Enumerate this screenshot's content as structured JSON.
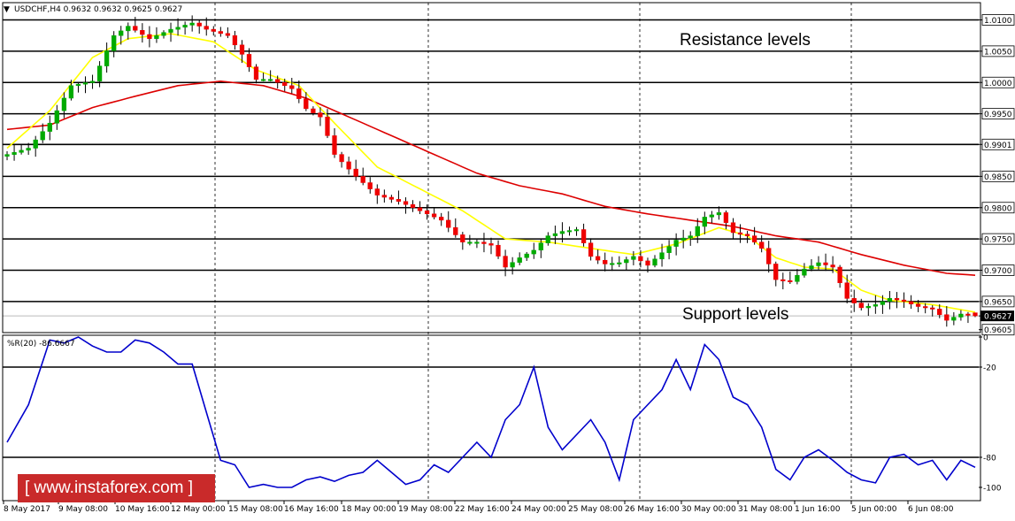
{
  "header": {
    "symbol_line": "USDCHF,H4  0.9632 0.9632 0.9625 0.9627",
    "indicator_line": "%R(20) -86.6667",
    "dropdown_glyph": "▼"
  },
  "annotations": {
    "resistance": "Resistance levels",
    "support": "Support levels"
  },
  "watermark": "[  www.instaforex.com ]",
  "colors": {
    "bull": "#00aa00",
    "bear": "#ee0000",
    "fast_ma": "#ffff00",
    "slow_ma": "#dd0000",
    "wpr": "#0000cc",
    "current_price_bg": "#000000",
    "logo_bg": "#c92a2a"
  },
  "chart_data": [
    {
      "type": "candlestick",
      "symbol": "USDCHF",
      "timeframe": "H4",
      "ohlc_current": {
        "open": 0.9632,
        "high": 0.9632,
        "low": 0.9625,
        "close": 0.9627
      },
      "ylim": [
        0.96,
        1.0125
      ],
      "price_ticks": [
        "1.0100",
        "1.0050",
        "1.0000",
        "0.9950",
        "0.9901",
        "0.9850",
        "0.9800",
        "0.9750",
        "0.9700",
        "0.9650",
        "0.9627",
        "0.9605"
      ],
      "level_lines": [
        1.01,
        1.005,
        1.0,
        0.995,
        0.9901,
        0.985,
        0.98,
        0.975,
        0.97,
        0.965
      ],
      "current_price": 0.9627,
      "x_tick_labels": [
        "8 May 2017",
        "9 May 08:00",
        "10 May 16:00",
        "12 May 00:00",
        "15 May 08:00",
        "16 May 16:00",
        "18 May 00:00",
        "19 May 08:00",
        "22 May 16:00",
        "24 May 00:00",
        "25 May 08:00",
        "26 May 16:00",
        "30 May 00:00",
        "31 May 08:00",
        "1 Jun 16:00",
        "5 Jun 00:00",
        "6 Jun 08:00"
      ],
      "close_path": [
        [
          0,
          0.9885
        ],
        [
          3,
          0.9895
        ],
        [
          6,
          0.9935
        ],
        [
          9,
          0.9995
        ],
        [
          12,
          1.0002
        ],
        [
          15,
          1.0075
        ],
        [
          17,
          1.009
        ],
        [
          20,
          1.007
        ],
        [
          23,
          1.0085
        ],
        [
          26,
          1.0095
        ],
        [
          28,
          1.0085
        ],
        [
          31,
          1.0075
        ],
        [
          33,
          1.0045
        ],
        [
          35,
          1.0005
        ],
        [
          37,
          1.0005
        ],
        [
          40,
          0.999
        ],
        [
          42,
          0.9958
        ],
        [
          44,
          0.9945
        ],
        [
          46,
          0.9885
        ],
        [
          49,
          0.985
        ],
        [
          52,
          0.982
        ],
        [
          55,
          0.981
        ],
        [
          58,
          0.9795
        ],
        [
          61,
          0.978
        ],
        [
          64,
          0.9745
        ],
        [
          66,
          0.9745
        ],
        [
          68,
          0.974
        ],
        [
          70,
          0.9705
        ],
        [
          72,
          0.972
        ],
        [
          74,
          0.9732
        ],
        [
          76,
          0.9755
        ],
        [
          78,
          0.9762
        ],
        [
          80,
          0.9765
        ],
        [
          82,
          0.9722
        ],
        [
          84,
          0.971
        ],
        [
          86,
          0.9712
        ],
        [
          88,
          0.9722
        ],
        [
          90,
          0.9708
        ],
        [
          92,
          0.9728
        ],
        [
          94,
          0.9748
        ],
        [
          96,
          0.9755
        ],
        [
          98,
          0.9785
        ],
        [
          100,
          0.9792
        ],
        [
          102,
          0.976
        ],
        [
          104,
          0.9755
        ],
        [
          106,
          0.9735
        ],
        [
          108,
          0.9685
        ],
        [
          110,
          0.9682
        ],
        [
          112,
          0.9702
        ],
        [
          114,
          0.9712
        ],
        [
          116,
          0.9705
        ],
        [
          118,
          0.9655
        ],
        [
          120,
          0.964
        ],
        [
          122,
          0.9645
        ],
        [
          124,
          0.9655
        ],
        [
          126,
          0.965
        ],
        [
          128,
          0.9642
        ],
        [
          130,
          0.9638
        ],
        [
          132,
          0.962
        ],
        [
          134,
          0.963
        ],
        [
          136,
          0.9627
        ]
      ],
      "fast_ma": [
        [
          0,
          0.9895
        ],
        [
          6,
          0.9955
        ],
        [
          12,
          1.004
        ],
        [
          17,
          1.007
        ],
        [
          23,
          1.0078
        ],
        [
          29,
          1.0065
        ],
        [
          35,
          1.002
        ],
        [
          41,
          0.9995
        ],
        [
          46,
          0.9935
        ],
        [
          52,
          0.9865
        ],
        [
          58,
          0.983
        ],
        [
          64,
          0.9795
        ],
        [
          70,
          0.975
        ],
        [
          76,
          0.9745
        ],
        [
          82,
          0.9735
        ],
        [
          88,
          0.9725
        ],
        [
          94,
          0.9742
        ],
        [
          100,
          0.9768
        ],
        [
          104,
          0.9755
        ],
        [
          108,
          0.972
        ],
        [
          112,
          0.9705
        ],
        [
          116,
          0.9702
        ],
        [
          120,
          0.9668
        ],
        [
          124,
          0.9652
        ],
        [
          130,
          0.9645
        ],
        [
          136,
          0.9633
        ]
      ],
      "slow_ma": [
        [
          0,
          0.9925
        ],
        [
          6,
          0.9932
        ],
        [
          12,
          0.996
        ],
        [
          18,
          0.9978
        ],
        [
          24,
          0.9995
        ],
        [
          30,
          1.0002
        ],
        [
          36,
          0.9995
        ],
        [
          42,
          0.9975
        ],
        [
          48,
          0.9945
        ],
        [
          54,
          0.9915
        ],
        [
          60,
          0.9885
        ],
        [
          66,
          0.9855
        ],
        [
          72,
          0.9835
        ],
        [
          78,
          0.9822
        ],
        [
          84,
          0.9802
        ],
        [
          90,
          0.979
        ],
        [
          96,
          0.978
        ],
        [
          102,
          0.977
        ],
        [
          108,
          0.9755
        ],
        [
          114,
          0.9745
        ],
        [
          120,
          0.9725
        ],
        [
          126,
          0.9708
        ],
        [
          132,
          0.9695
        ],
        [
          136,
          0.9692
        ]
      ]
    },
    {
      "type": "line",
      "indicator": "Williams %R",
      "period": 20,
      "current_value": -86.6667,
      "ylim": [
        -100,
        0
      ],
      "y_ticks": [
        "0",
        "-20",
        "-80",
        "-100"
      ],
      "level_lines": [
        -20,
        -80
      ],
      "series": [
        {
          "values": [
            [
              0,
              -70
            ],
            [
              3,
              -45
            ],
            [
              6,
              -2
            ],
            [
              8,
              -4
            ],
            [
              10,
              0
            ],
            [
              12,
              -6
            ],
            [
              14,
              -10
            ],
            [
              16,
              -10
            ],
            [
              18,
              -2
            ],
            [
              20,
              -4
            ],
            [
              22,
              -10
            ],
            [
              24,
              -18
            ],
            [
              26,
              -18
            ],
            [
              28,
              -50
            ],
            [
              30,
              -82
            ],
            [
              32,
              -85
            ],
            [
              34,
              -100
            ],
            [
              36,
              -98
            ],
            [
              38,
              -100
            ],
            [
              40,
              -100
            ],
            [
              42,
              -95
            ],
            [
              44,
              -93
            ],
            [
              46,
              -96
            ],
            [
              48,
              -92
            ],
            [
              50,
              -90
            ],
            [
              52,
              -82
            ],
            [
              54,
              -90
            ],
            [
              56,
              -98
            ],
            [
              58,
              -95
            ],
            [
              60,
              -85
            ],
            [
              62,
              -90
            ],
            [
              64,
              -80
            ],
            [
              66,
              -70
            ],
            [
              68,
              -80
            ],
            [
              70,
              -55
            ],
            [
              72,
              -45
            ],
            [
              74,
              -20
            ],
            [
              76,
              -60
            ],
            [
              78,
              -75
            ],
            [
              80,
              -65
            ],
            [
              82,
              -55
            ],
            [
              84,
              -70
            ],
            [
              86,
              -95
            ],
            [
              88,
              -55
            ],
            [
              90,
              -45
            ],
            [
              92,
              -35
            ],
            [
              94,
              -15
            ],
            [
              96,
              -35
            ],
            [
              98,
              -5
            ],
            [
              100,
              -15
            ],
            [
              102,
              -40
            ],
            [
              104,
              -45
            ],
            [
              106,
              -60
            ],
            [
              108,
              -88
            ],
            [
              110,
              -95
            ],
            [
              112,
              -80
            ],
            [
              114,
              -75
            ],
            [
              116,
              -82
            ],
            [
              118,
              -90
            ],
            [
              120,
              -95
            ],
            [
              122,
              -97
            ],
            [
              124,
              -80
            ],
            [
              126,
              -78
            ],
            [
              128,
              -85
            ],
            [
              130,
              -82
            ],
            [
              132,
              -95
            ],
            [
              134,
              -82
            ],
            [
              136,
              -86.6667
            ]
          ]
        }
      ]
    }
  ]
}
